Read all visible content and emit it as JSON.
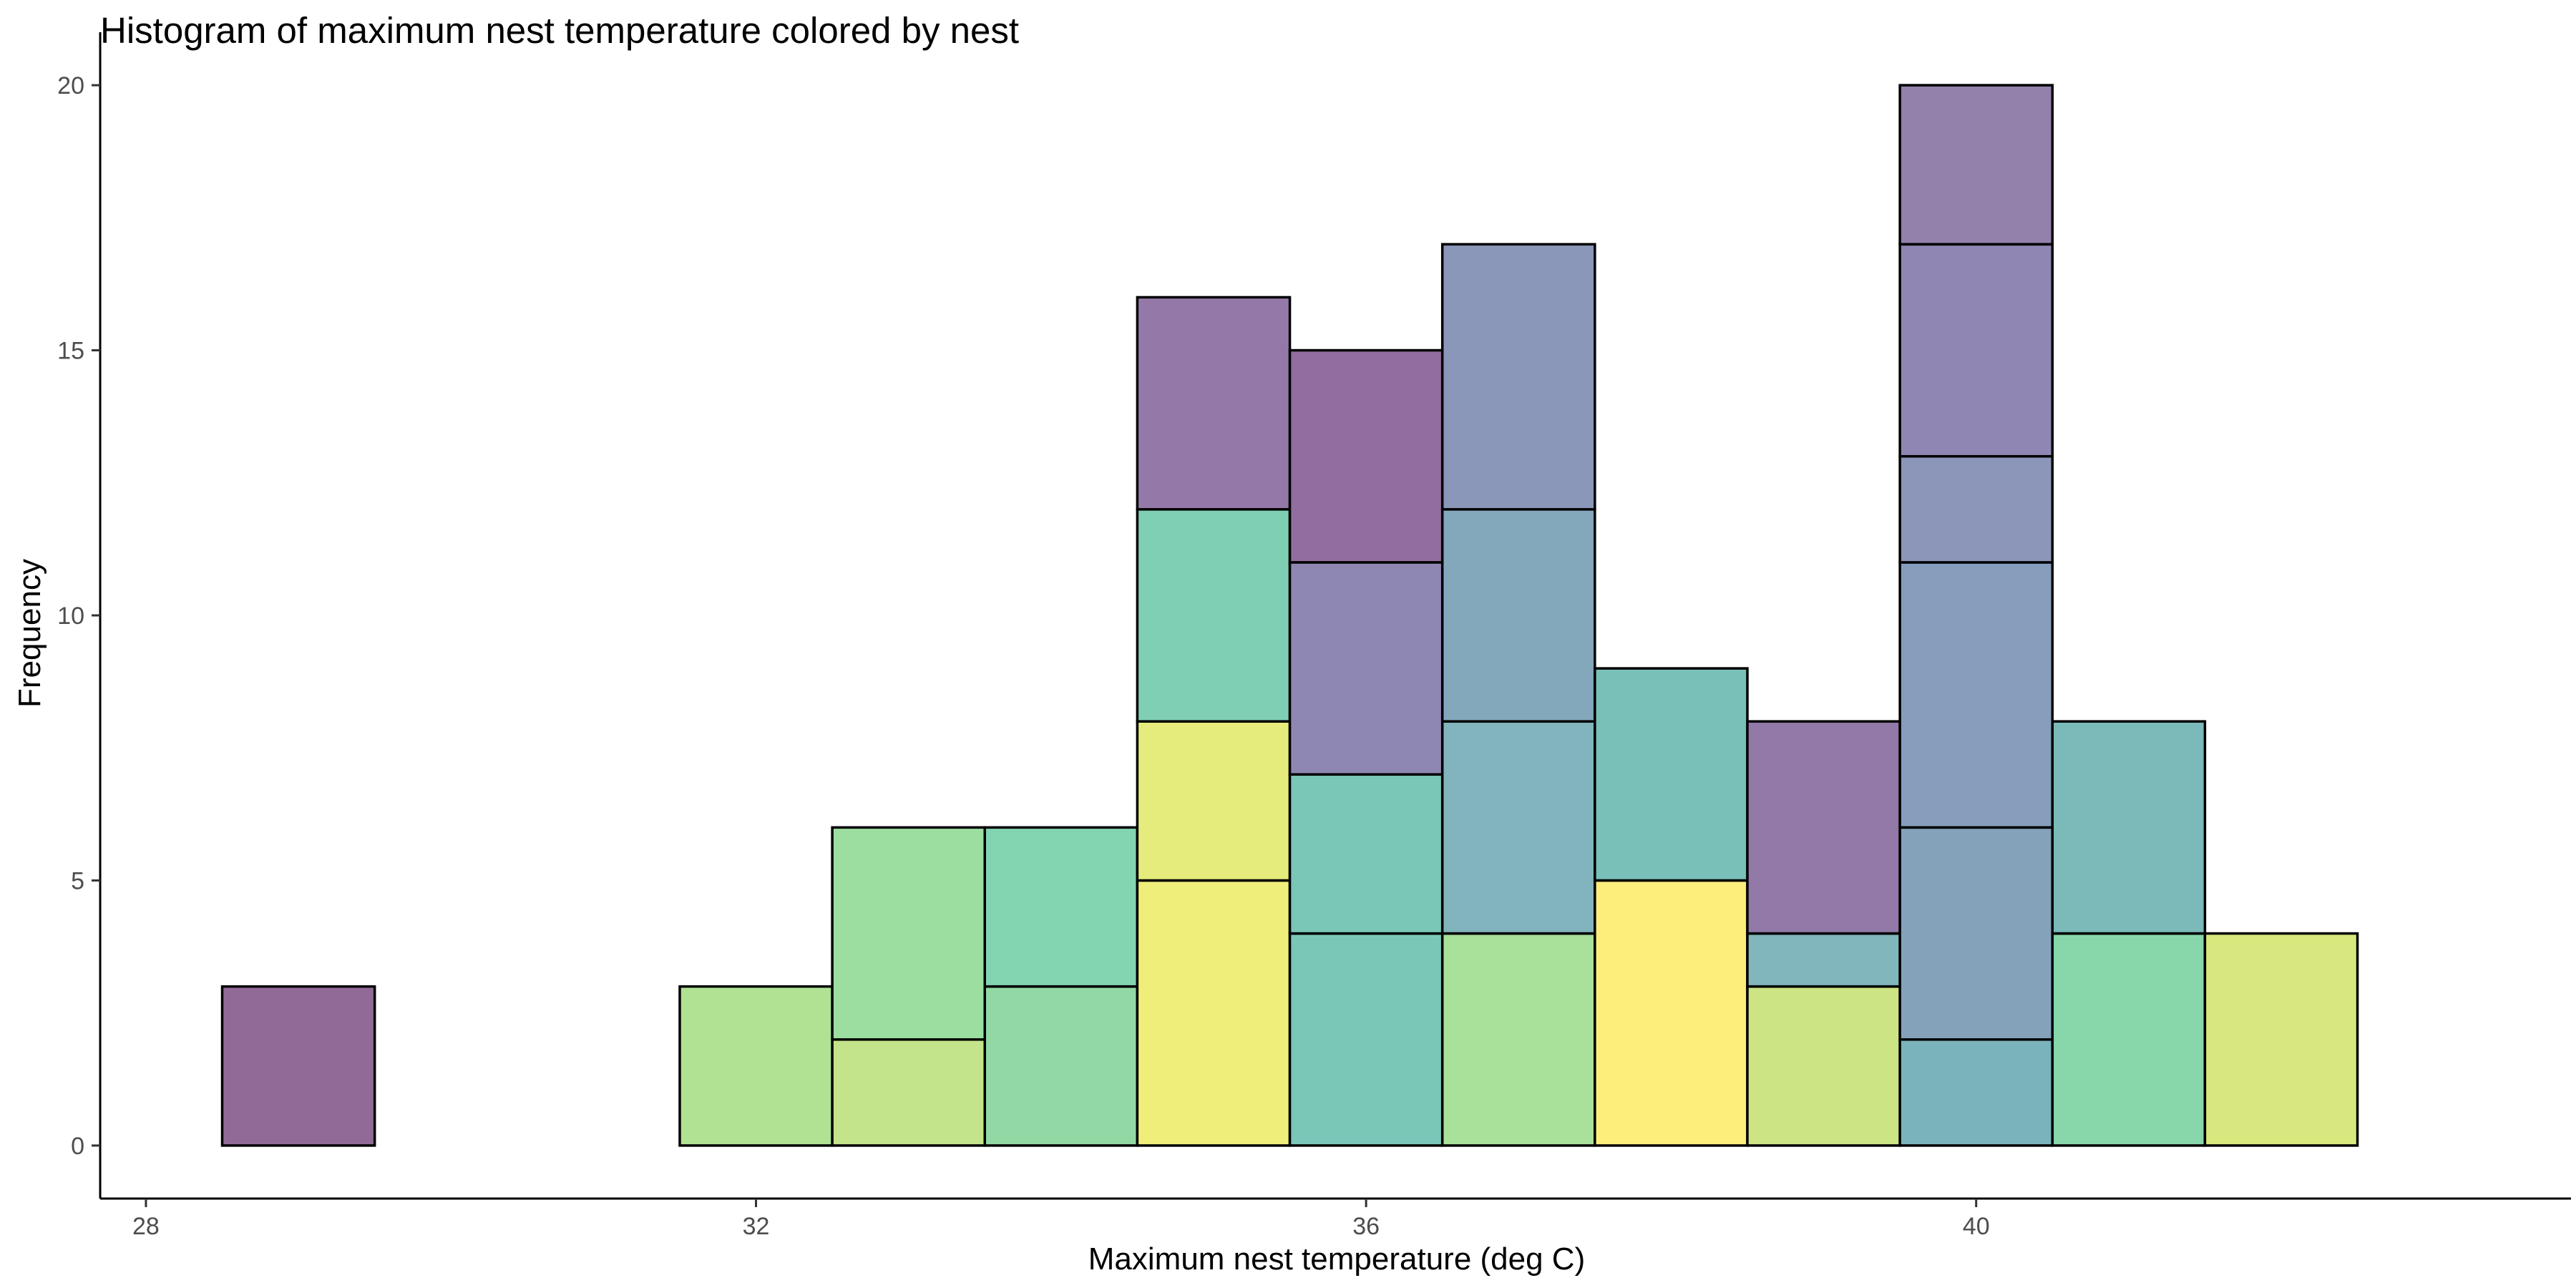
{
  "chart_data": {
    "type": "bar",
    "subtype": "stacked histogram",
    "title": "Histogram of maximum nest temperature colored by nest",
    "xlabel": "Maximum nest temperature (deg C)",
    "ylabel": "Frequency",
    "xlim": [
      27.7,
      43.9
    ],
    "ylim": [
      -1,
      21
    ],
    "x_ticks": [
      28,
      32,
      36,
      40
    ],
    "y_ticks": [
      0,
      5,
      10,
      15,
      20
    ],
    "bin_width": 1,
    "grid": false,
    "legend": "none",
    "bins": [
      {
        "x_center": 29,
        "segments": [
          {
            "count": 3,
            "color": "#926a98"
          }
        ]
      },
      {
        "x_center": 30,
        "segments": []
      },
      {
        "x_center": 31,
        "segments": []
      },
      {
        "x_center": 32,
        "segments": [
          {
            "count": 3,
            "color": "#b1e294"
          }
        ]
      },
      {
        "x_center": 33,
        "segments": [
          {
            "count": 2,
            "color": "#c3e48a"
          },
          {
            "count": 4,
            "color": "#9cdea0"
          }
        ]
      },
      {
        "x_center": 34,
        "segments": [
          {
            "count": 3,
            "color": "#91d8a4"
          },
          {
            "count": 3,
            "color": "#83d4b1"
          }
        ]
      },
      {
        "x_center": 35,
        "segments": [
          {
            "count": 5,
            "color": "#f0ee7a"
          },
          {
            "count": 3,
            "color": "#e6ec7c"
          },
          {
            "count": 4,
            "color": "#7fcfb4"
          },
          {
            "count": 4,
            "color": "#9479a8"
          }
        ]
      },
      {
        "x_center": 36,
        "segments": [
          {
            "count": 4,
            "color": "#7ac7b8"
          },
          {
            "count": 3,
            "color": "#7ac7b8"
          },
          {
            "count": 4,
            "color": "#8f87b3"
          },
          {
            "count": 4,
            "color": "#926d9f"
          }
        ]
      },
      {
        "x_center": 37,
        "segments": [
          {
            "count": 4,
            "color": "#a9e09a"
          },
          {
            "count": 4,
            "color": "#81b4bd"
          },
          {
            "count": 4,
            "color": "#83a7bb"
          },
          {
            "count": 5,
            "color": "#8b97b8"
          }
        ]
      },
      {
        "x_center": 38,
        "segments": [
          {
            "count": 5,
            "color": "#fdee7c"
          },
          {
            "count": 4,
            "color": "#78c0b8"
          }
        ]
      },
      {
        "x_center": 39,
        "segments": [
          {
            "count": 3,
            "color": "#cde484"
          },
          {
            "count": 1,
            "color": "#82b6bd"
          },
          {
            "count": 4,
            "color": "#9279a8"
          }
        ]
      },
      {
        "x_center": 40,
        "segments": [
          {
            "count": 2,
            "color": "#7bb3bc"
          },
          {
            "count": 4,
            "color": "#85a2bb"
          },
          {
            "count": 5,
            "color": "#869ebc"
          },
          {
            "count": 2,
            "color": "#8c96b8"
          },
          {
            "count": 4,
            "color": "#9086b3"
          },
          {
            "count": 3,
            "color": "#9380ab"
          }
        ]
      },
      {
        "x_center": 41,
        "segments": [
          {
            "count": 4,
            "color": "#87d7aa"
          },
          {
            "count": 4,
            "color": "#7abab9"
          }
        ]
      },
      {
        "x_center": 42,
        "segments": [
          {
            "count": 4,
            "color": "#d9e87e"
          }
        ]
      }
    ]
  }
}
